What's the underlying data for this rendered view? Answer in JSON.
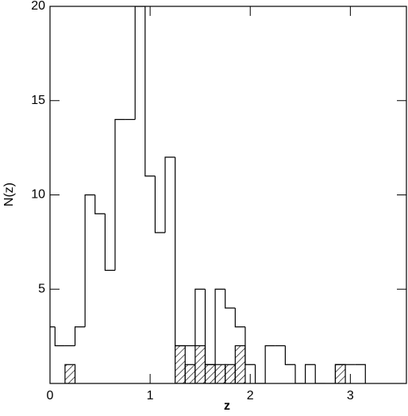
{
  "chart_data": {
    "type": "histogram",
    "xlabel": "z",
    "ylabel": "N(z)",
    "bins": [
      -0.05,
      0.05,
      0.15,
      0.25,
      0.35,
      0.45,
      0.55,
      0.65,
      0.75,
      0.85,
      0.95,
      1.05,
      1.15,
      1.25,
      1.35,
      1.45,
      1.55,
      1.65,
      1.75,
      1.85,
      1.95,
      2.05,
      2.15,
      2.25,
      2.35,
      2.45,
      2.55,
      2.65,
      2.75,
      2.85,
      2.95,
      3.05,
      3.15
    ],
    "series": [
      {
        "values": [
          3,
          2,
          2,
          3,
          10,
          9,
          6,
          14,
          14,
          20,
          11,
          8,
          12,
          2,
          2,
          5,
          1,
          5,
          4,
          3,
          1,
          0,
          2,
          2,
          1,
          0,
          1,
          0,
          0,
          1,
          1,
          1
        ],
        "color": "#000000",
        "style": "outline"
      },
      {
        "values": [
          0,
          0,
          1,
          0,
          0,
          0,
          0,
          0,
          0,
          0,
          0,
          0,
          0,
          2,
          1,
          2,
          1,
          1,
          1,
          2,
          0,
          0,
          0,
          0,
          0,
          0,
          0,
          0,
          0,
          1,
          0,
          0
        ],
        "color": "#000000",
        "style": "hatched"
      }
    ],
    "xlim": [
      0,
      3.56
    ],
    "ylim": [
      0,
      20
    ],
    "xticks": [
      0,
      1,
      2,
      3
    ],
    "yticks": [
      5,
      10,
      15,
      20
    ]
  }
}
